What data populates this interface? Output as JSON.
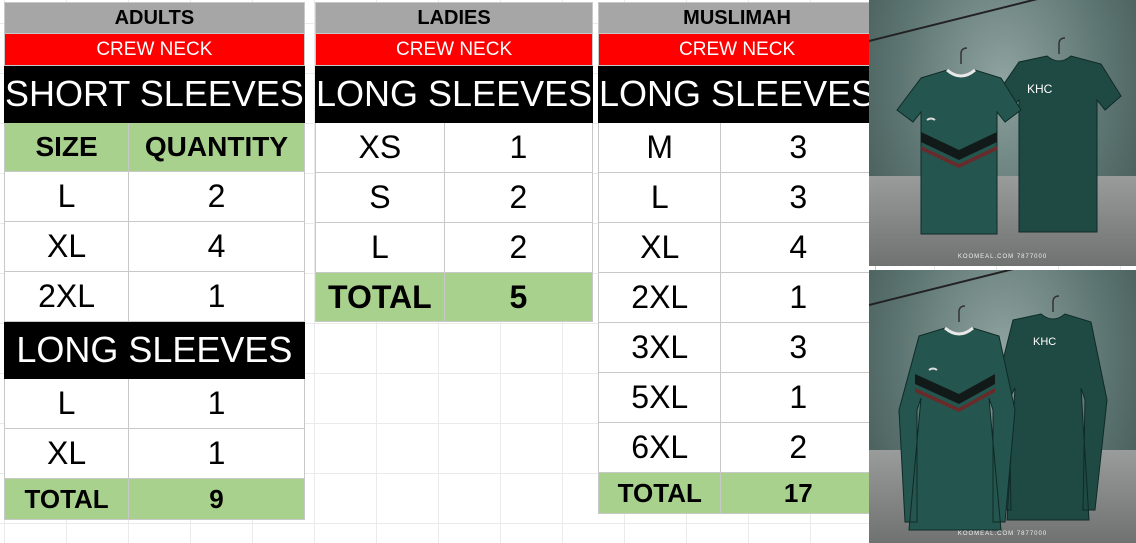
{
  "adults": {
    "title": "ADULTS",
    "neck": "CREW NECK",
    "short_title": "SHORT SLEEVES",
    "col_size": "SIZE",
    "col_qty": "QUANTITY",
    "short_rows": [
      {
        "size": "L",
        "qty": "2"
      },
      {
        "size": "XL",
        "qty": "4"
      },
      {
        "size": "2XL",
        "qty": "1"
      }
    ],
    "long_title": "LONG SLEEVES",
    "long_rows": [
      {
        "size": "L",
        "qty": "1"
      },
      {
        "size": "XL",
        "qty": "1"
      }
    ],
    "total_label": "TOTAL",
    "total_value": "9"
  },
  "ladies": {
    "title": "LADIES",
    "neck": "CREW NECK",
    "sleeve_title": "LONG SLEEVES",
    "rows": [
      {
        "size": "XS",
        "qty": "1"
      },
      {
        "size": "S",
        "qty": "2"
      },
      {
        "size": "L",
        "qty": "2"
      }
    ],
    "total_label": "TOTAL",
    "total_value": "5"
  },
  "muslimah": {
    "title": "MUSLIMAH",
    "neck": "CREW NECK",
    "sleeve_title": "LONG SLEEVES",
    "rows": [
      {
        "size": "M",
        "qty": "3"
      },
      {
        "size": "L",
        "qty": "3"
      },
      {
        "size": "XL",
        "qty": "4"
      },
      {
        "size": "2XL",
        "qty": "1"
      },
      {
        "size": "3XL",
        "qty": "3"
      },
      {
        "size": "5XL",
        "qty": "1"
      },
      {
        "size": "6XL",
        "qty": "2"
      }
    ],
    "total_label": "TOTAL",
    "total_value": "17"
  },
  "images": {
    "shirt_brand": "KHC",
    "dress_brand": "KHC",
    "watermark": "KOOMEAL.COM 7877000"
  },
  "colors": {
    "header_grey": "#a6a6a6",
    "crew_red": "#ff0000",
    "sleeve_black": "#000000",
    "total_green": "#a9d18e",
    "jersey_green": "#1f4a44"
  }
}
